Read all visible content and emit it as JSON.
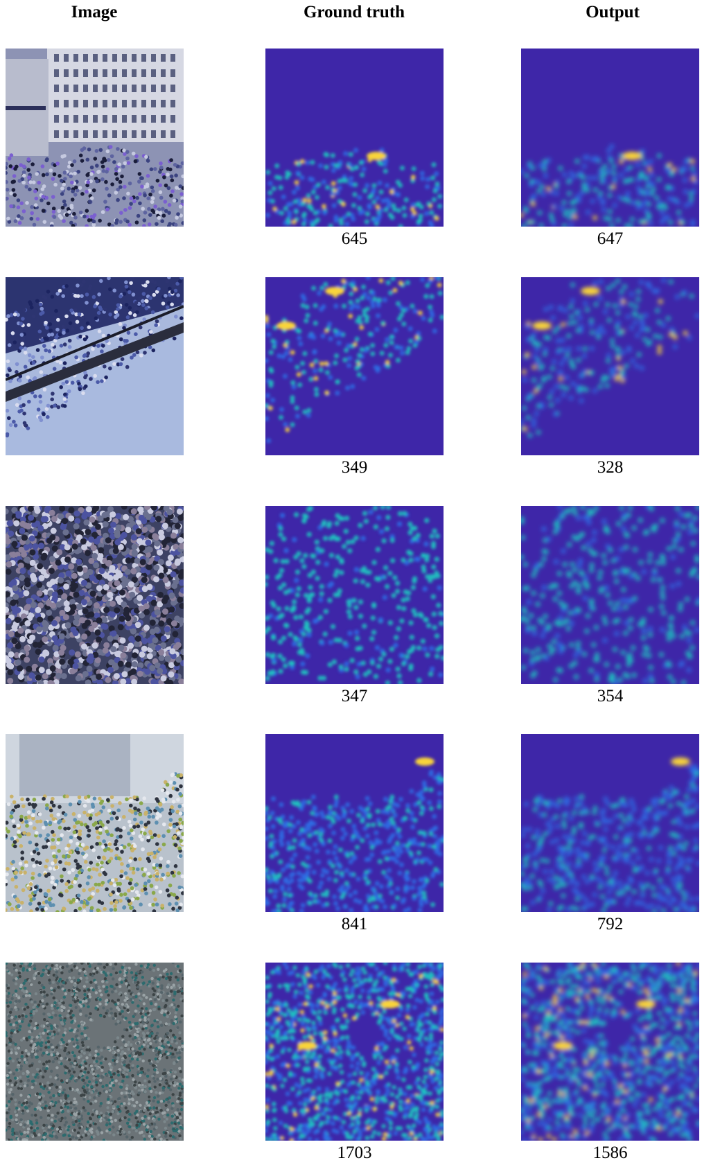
{
  "headers": {
    "image": "Image",
    "ground_truth": "Ground truth",
    "output": "Output"
  },
  "rows": [
    {
      "gt_count": "645",
      "out_count": "647",
      "scene": "plaza-crowd-with-buildings"
    },
    {
      "gt_count": "349",
      "out_count": "328",
      "scene": "stadium-crowd-behind-railing"
    },
    {
      "gt_count": "347",
      "out_count": "354",
      "scene": "dense-crowd-faces"
    },
    {
      "gt_count": "841",
      "out_count": "792",
      "scene": "umbrella-crowd-with-buildings"
    },
    {
      "gt_count": "1703",
      "out_count": "1586",
      "scene": "aerial-dense-crowd"
    }
  ],
  "colors": {
    "density_background": "#3e26a8",
    "density_low": "#2f6fe6",
    "density_mid": "#1fc8c0",
    "density_high": "#f9d43a"
  }
}
